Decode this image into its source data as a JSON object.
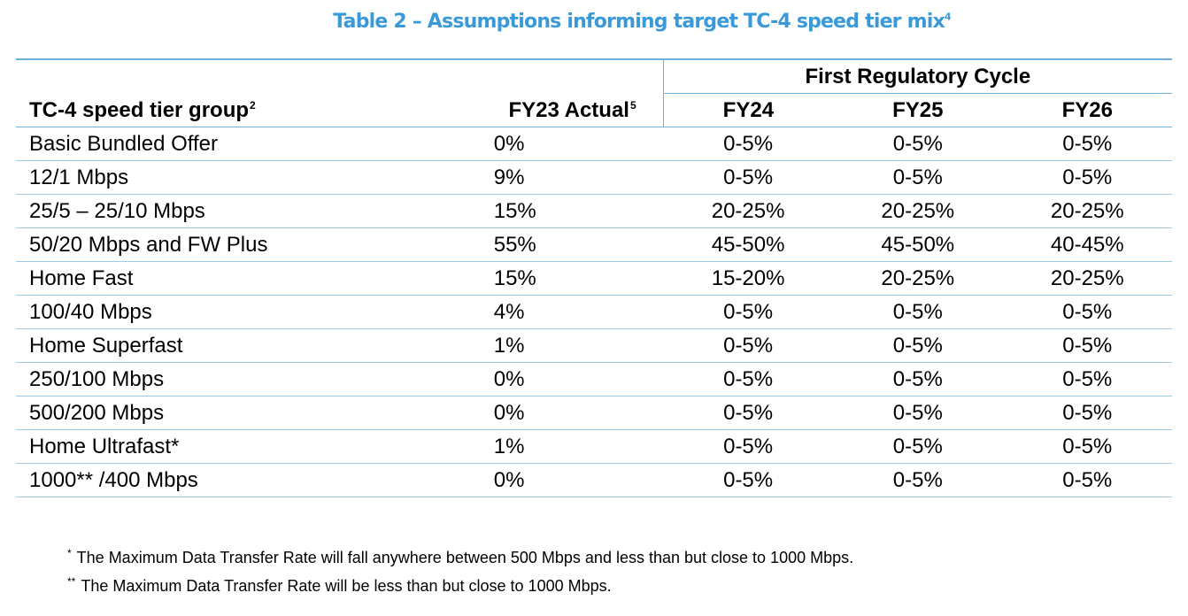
{
  "title": {
    "text": "Table 2 – Assumptions informing target TC-4 speed tier mix",
    "sup": "4"
  },
  "table": {
    "group_header": "First Regulatory Cycle",
    "headers": {
      "col0": "TC-4 speed tier group",
      "col0_sup": "2",
      "col1": "FY23 Actual",
      "col1_sup": "5",
      "col2": "FY24",
      "col3": "FY25",
      "col4": "FY26"
    },
    "rows": [
      [
        "Basic Bundled Offer",
        "0%",
        "0-5%",
        "0-5%",
        "0-5%"
      ],
      [
        "12/1 Mbps",
        "9%",
        "0-5%",
        "0-5%",
        "0-5%"
      ],
      [
        "25/5 – 25/10 Mbps",
        "15%",
        "20-25%",
        "20-25%",
        "20-25%"
      ],
      [
        "50/20 Mbps and FW Plus",
        "55%",
        "45-50%",
        "45-50%",
        "40-45%"
      ],
      [
        "Home Fast",
        "15%",
        "15-20%",
        "20-25%",
        "20-25%"
      ],
      [
        "100/40 Mbps",
        "4%",
        "0-5%",
        "0-5%",
        "0-5%"
      ],
      [
        "Home Superfast",
        "1%",
        "0-5%",
        "0-5%",
        "0-5%"
      ],
      [
        "250/100 Mbps",
        "0%",
        "0-5%",
        "0-5%",
        "0-5%"
      ],
      [
        "500/200 Mbps",
        "0%",
        "0-5%",
        "0-5%",
        "0-5%"
      ],
      [
        "Home Ultrafast*",
        "1%",
        "0-5%",
        "0-5%",
        "0-5%"
      ],
      [
        "1000** /400 Mbps",
        "0%",
        "0-5%",
        "0-5%",
        "0-5%"
      ]
    ]
  },
  "footnotes": [
    {
      "mark": "*",
      "text": "The Maximum Data Transfer Rate will fall anywhere between 500 Mbps and less than but close to 1000 Mbps."
    },
    {
      "mark": "**",
      "text": "The Maximum Data Transfer Rate will be less than but close to 1000 Mbps."
    }
  ],
  "colors": {
    "title": "#3a9ad9",
    "rule": "#6fb0dc"
  }
}
